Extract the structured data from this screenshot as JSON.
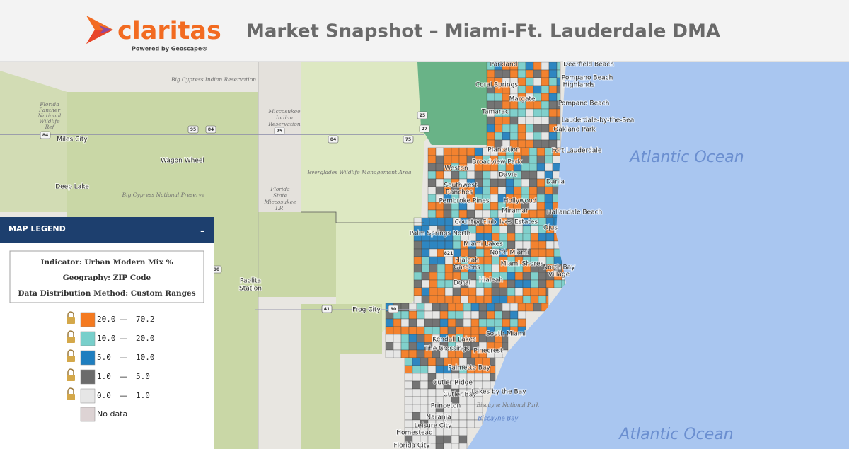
{
  "header": {
    "logo": "claritas",
    "logo_tagline": "Powered by Geoscape®",
    "title": "Market Snapshot – Miami-Ft. Lauderdale DMA"
  },
  "legend": {
    "title": "MAP LEGEND",
    "toggle": "-",
    "indicator": "Indicator: Urban Modern Mix %",
    "geography": "Geography: ZIP Code",
    "method": "Data Distribution Method: Custom Ranges",
    "range_separator": "—",
    "ranges": [
      {
        "from": "20.0",
        "to": "70.2",
        "color": "#f47a20"
      },
      {
        "from": "10.0",
        "to": "20.0",
        "color": "#78cfcb"
      },
      {
        "from": "5.0",
        "to": "10.0",
        "color": "#1f7ebf"
      },
      {
        "from": "1.0",
        "to": "5.0",
        "color": "#6b6b6b"
      },
      {
        "from": "0.0",
        "to": "1.0",
        "color": "#e6e6e6"
      }
    ],
    "no_data": {
      "label": "No data",
      "color": "#ddd3d4"
    }
  },
  "map": {
    "labels": [
      "Parkland",
      "Deerfield Beach",
      "Pompano Beach",
      "Highlands",
      "Coral Springs",
      "Margate",
      "Pompano Beach",
      "Tamarac",
      "Lauderdale-by-the-Sea",
      "Oakland Park",
      "Plantation",
      "Fort Lauderdale",
      "Broadview Park",
      "Weston",
      "Davie",
      "Southwest",
      "Ranches",
      "Dania",
      "Pembroke Pines",
      "Hollywood",
      "Miramar",
      "Hallandale Beach",
      "Country Club",
      "Ives Estates",
      "Palm Springs North",
      "Ojus",
      "Miami Lakes",
      "North Miami",
      "Hialeah",
      "Gardens",
      "Miami Shores",
      "North Bay",
      "Village",
      "Doral",
      "Hialeah",
      "Frog City",
      "Kendall Lakes",
      "The Crossings",
      "Pinecrest",
      "South Miami",
      "Palmetto Bay",
      "Cutler Ridge",
      "Cutler Bay",
      "Lakes by the Bay",
      "Princeton",
      "Naranja",
      "Leisure City",
      "Homestead",
      "Florida City",
      "Biscayne National Park",
      "Biscayne Bay",
      "Atlantic Ocean",
      "Atlantic Ocean",
      "Big Cypress Indian Reservation",
      "Miccosukee",
      "Indian",
      "Reservation",
      "Florida",
      "Panther",
      "National",
      "Wildlife",
      "Ref",
      "Miles City",
      "Wagon Wheel",
      "Deep Lake",
      "Big Cypress National Preserve",
      "Everglades Wildlife Management Area",
      "Florida",
      "State",
      "Miccosukee",
      "I.R.",
      "Paolita",
      "Station"
    ],
    "road_shields": [
      "84",
      "75",
      "75",
      "95",
      "84",
      "84",
      "27",
      "25",
      "41",
      "90",
      "821",
      "90"
    ]
  }
}
